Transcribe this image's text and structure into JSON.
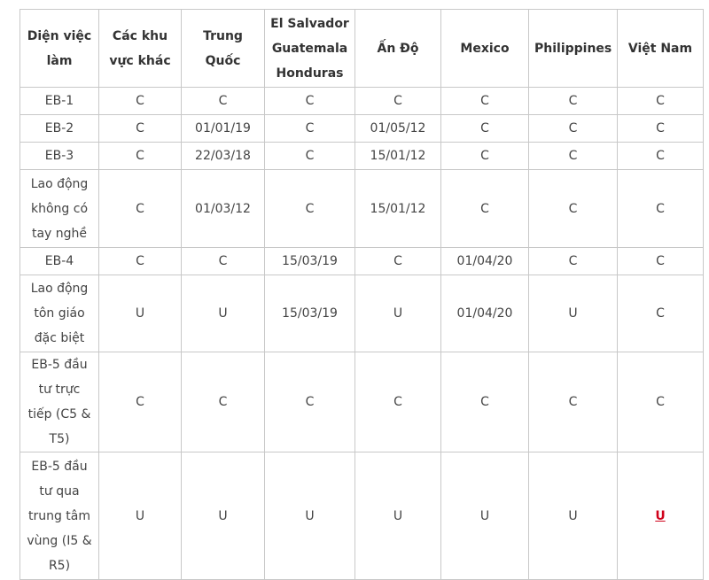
{
  "table": {
    "header": [
      "Diện việc làm",
      "Các khu vực khác",
      "Trung Quốc",
      "El Salvador Guatemala Honduras",
      "Ấn Độ",
      "Mexico",
      "Philippines",
      "Việt Nam"
    ],
    "rows": [
      [
        "EB-1",
        "C",
        "C",
        "C",
        "C",
        "C",
        "C",
        "C"
      ],
      [
        "EB-2",
        "C",
        "01/01/19",
        "C",
        "01/05/12",
        "C",
        "C",
        "C"
      ],
      [
        "EB-3",
        "C",
        "22/03/18",
        "C",
        "15/01/12",
        "C",
        "C",
        "C"
      ],
      [
        "Lao động không có tay nghề",
        "C",
        "01/03/12",
        "C",
        "15/01/12",
        "C",
        "C",
        "C"
      ],
      [
        "EB-4",
        "C",
        "C",
        "15/03/19",
        "C",
        "01/04/20",
        "C",
        "C"
      ],
      [
        "Lao động tôn giáo đặc biệt",
        "U",
        "U",
        "15/03/19",
        "U",
        "01/04/20",
        "U",
        "C"
      ],
      [
        "EB-5 đầu tư trực tiếp (C5 & T5)",
        "C",
        "C",
        "C",
        "C",
        "C",
        "C",
        "C"
      ],
      [
        "EB-5 đầu tư qua trung tâm vùng (I5 & R5)",
        "U",
        "U",
        "U",
        "U",
        "U",
        "U",
        "U"
      ]
    ]
  }
}
